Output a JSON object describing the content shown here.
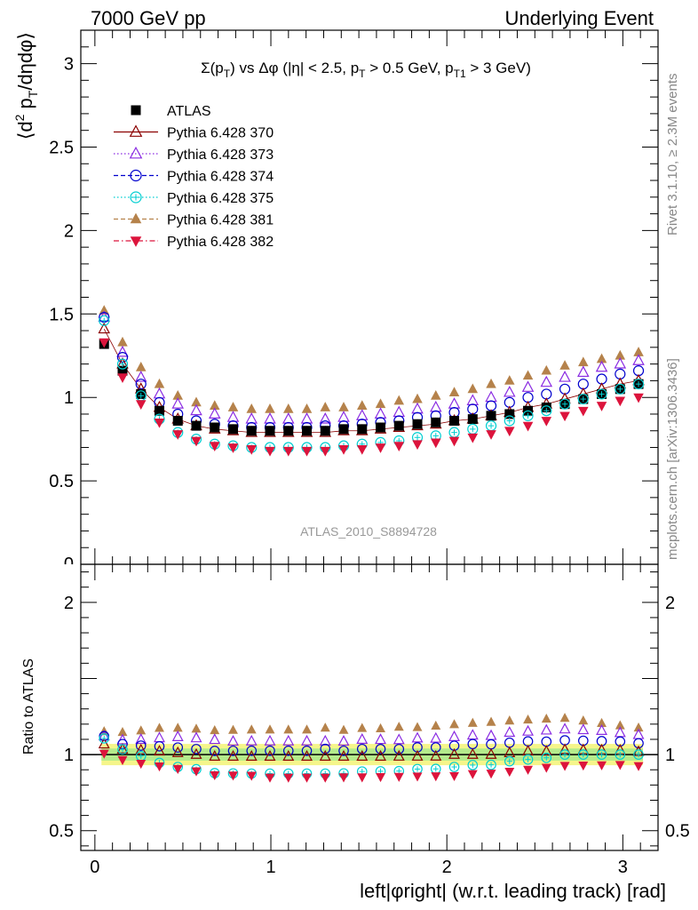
{
  "header": {
    "left": "7000 GeV pp",
    "right": "Underlying Event"
  },
  "side_labels": {
    "rivet": "Rivet 3.1.10, ≥ 2.3M events",
    "mcplots": "mcplots.cern.ch [arXiv:1306.3436]"
  },
  "watermark": "ATLAS_2010_S8894728",
  "chart_data": [
    {
      "type": "scatter",
      "title": "Σ(p_T) vs Δφ (|η| < 2.5, p_T > 0.5 GeV, p_T1 > 3 GeV)",
      "title_parts": {
        "a": "Σ(p",
        "a_sub": "T",
        "b": ") vs Δφ (|η| < 2.5, p",
        "b_sub": "T",
        "c": " > 0.5 GeV, p",
        "c_sub": "T1",
        "d": " > 3 GeV)"
      },
      "ylabel_parts": {
        "a": "⟨d",
        "sup": "2",
        "b": " p",
        "sub": "T",
        "c": "/dηdφ⟩"
      },
      "xlabel": "left|φright| (w.r.t. leading track) [rad]",
      "xlim": [
        -0.08,
        3.2
      ],
      "ylim": [
        0,
        3.2
      ],
      "x_ticks": [
        "0",
        "1",
        "2",
        "3"
      ],
      "y_ticks": [
        "0.5",
        "1",
        "1.5",
        "2",
        "2.5",
        "3"
      ],
      "x": [
        0.0524,
        0.1571,
        0.2618,
        0.3665,
        0.4712,
        0.576,
        0.6807,
        0.7854,
        0.8901,
        0.9948,
        1.0996,
        1.2043,
        1.309,
        1.4137,
        1.5184,
        1.6232,
        1.7279,
        1.8326,
        1.9373,
        2.042,
        2.1468,
        2.2515,
        2.3562,
        2.4609,
        2.5656,
        2.6704,
        2.7751,
        2.8798,
        2.9845,
        3.0892
      ],
      "legend_position": "top-left",
      "series": [
        {
          "name": "ATLAS",
          "color": "#000000",
          "marker": "filled-square",
          "line": "none",
          "values": [
            1.32,
            1.16,
            1.02,
            0.92,
            0.86,
            0.83,
            0.82,
            0.81,
            0.8,
            0.8,
            0.8,
            0.8,
            0.8,
            0.81,
            0.81,
            0.82,
            0.83,
            0.84,
            0.85,
            0.86,
            0.87,
            0.89,
            0.9,
            0.92,
            0.94,
            0.96,
            0.99,
            1.02,
            1.05,
            1.08
          ]
        },
        {
          "name": "Pythia 6.428 370",
          "color": "#8b0000",
          "marker": "open-triangle-up",
          "line": "solid",
          "values": [
            1.41,
            1.2,
            1.05,
            0.94,
            0.87,
            0.83,
            0.81,
            0.8,
            0.79,
            0.79,
            0.79,
            0.79,
            0.79,
            0.8,
            0.8,
            0.81,
            0.82,
            0.83,
            0.84,
            0.86,
            0.87,
            0.89,
            0.91,
            0.94,
            0.96,
            0.99,
            1.02,
            1.05,
            1.08,
            1.1
          ]
        },
        {
          "name": "Pythia 6.428 373",
          "color": "#8a2be2",
          "marker": "open-triangle-up",
          "line": "dotted",
          "values": [
            1.48,
            1.27,
            1.12,
            1.02,
            0.96,
            0.92,
            0.9,
            0.88,
            0.87,
            0.87,
            0.87,
            0.87,
            0.87,
            0.88,
            0.89,
            0.9,
            0.91,
            0.93,
            0.94,
            0.96,
            0.98,
            1.0,
            1.03,
            1.06,
            1.09,
            1.12,
            1.15,
            1.18,
            1.2,
            1.22
          ]
        },
        {
          "name": "Pythia 6.428 374",
          "color": "#0000cd",
          "marker": "open-circle",
          "line": "dashed",
          "values": [
            1.48,
            1.24,
            1.08,
            0.97,
            0.9,
            0.86,
            0.84,
            0.83,
            0.82,
            0.82,
            0.82,
            0.82,
            0.83,
            0.83,
            0.84,
            0.85,
            0.86,
            0.88,
            0.89,
            0.91,
            0.93,
            0.95,
            0.97,
            1.0,
            1.02,
            1.05,
            1.08,
            1.11,
            1.14,
            1.16
          ]
        },
        {
          "name": "Pythia 6.428 375",
          "color": "#00ced1",
          "marker": "open-circle-cross",
          "line": "dotted",
          "values": [
            1.46,
            1.2,
            1.01,
            0.87,
            0.79,
            0.75,
            0.72,
            0.71,
            0.7,
            0.7,
            0.7,
            0.7,
            0.7,
            0.71,
            0.72,
            0.73,
            0.74,
            0.76,
            0.77,
            0.79,
            0.81,
            0.83,
            0.86,
            0.89,
            0.92,
            0.96,
            0.99,
            1.02,
            1.05,
            1.08
          ]
        },
        {
          "name": "Pythia 6.428 381",
          "color": "#b5824b",
          "marker": "filled-triangle-up",
          "line": "dashed",
          "values": [
            1.52,
            1.33,
            1.18,
            1.08,
            1.01,
            0.97,
            0.95,
            0.94,
            0.93,
            0.93,
            0.93,
            0.93,
            0.94,
            0.94,
            0.95,
            0.96,
            0.98,
            0.99,
            1.01,
            1.03,
            1.05,
            1.08,
            1.1,
            1.13,
            1.16,
            1.19,
            1.21,
            1.23,
            1.25,
            1.27
          ]
        },
        {
          "name": "Pythia 6.428 382",
          "color": "#dc143c",
          "marker": "filled-triangle-down",
          "line": "dashdot",
          "values": [
            1.33,
            1.12,
            0.96,
            0.85,
            0.78,
            0.74,
            0.71,
            0.7,
            0.69,
            0.68,
            0.68,
            0.68,
            0.68,
            0.69,
            0.69,
            0.7,
            0.71,
            0.72,
            0.73,
            0.74,
            0.76,
            0.78,
            0.8,
            0.83,
            0.86,
            0.89,
            0.92,
            0.95,
            0.98,
            1.0
          ]
        }
      ]
    },
    {
      "type": "scatter",
      "ylabel": "Ratio to ATLAS",
      "ylim": [
        0.37,
        2.25
      ],
      "y_ticks": [
        "0.5",
        "1",
        "2"
      ],
      "reference_line": 1,
      "band_inner": 0.04,
      "band_outer": 0.07
    }
  ]
}
